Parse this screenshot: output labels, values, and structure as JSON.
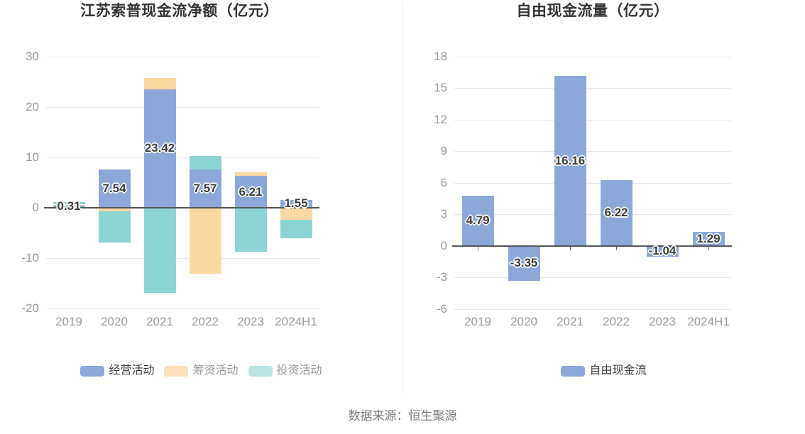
{
  "footer": {
    "text": "数据来源：恒生聚源"
  },
  "style": {
    "background": "#ffffff",
    "grid_color": "#e3e8f4",
    "zero_line_color": "#565656",
    "tick_color": "#666666",
    "axis_label_color": "#999999",
    "title_color": "#333333",
    "bar_label_color": "#3d3d3d",
    "footer_color": "#7a7a7a",
    "divider_color": "#ececec"
  },
  "chart_data": [
    {
      "type": "bar",
      "stacked": true,
      "title": "江苏索普现金流净额（亿元）",
      "categories": [
        "2019",
        "2020",
        "2021",
        "2022",
        "2023",
        "2024H1"
      ],
      "series": [
        {
          "name": "经营活动",
          "color": "#8ca8d8",
          "show_labels": true,
          "values": [
            0.31,
            7.54,
            23.42,
            7.57,
            6.21,
            1.55
          ]
        },
        {
          "name": "筹资活动",
          "color": "#fad8a2",
          "show_labels": false,
          "values": [
            0.25,
            -0.7,
            2.3,
            -13.2,
            0.7,
            -2.5
          ]
        },
        {
          "name": "投资活动",
          "color": "#8bd4d4",
          "show_labels": false,
          "values": [
            0.55,
            -6.3,
            -17.0,
            2.6,
            -8.8,
            -3.6
          ]
        }
      ],
      "labeled_values": [
        "0.31",
        "7.54",
        "23.42",
        "7.57",
        "6.21",
        "1.55"
      ],
      "y_ticks": [
        30,
        20,
        10,
        0,
        -10,
        -20
      ],
      "ylim": [
        -20,
        30
      ],
      "xlabel": "",
      "ylabel": "",
      "grid": true,
      "legend_position": "bottom",
      "legend": [
        {
          "label": "经营活动",
          "swatch_color": "#8ca8d8",
          "label_color": "#3c3c3c"
        },
        {
          "label": "筹资活动",
          "swatch_color": "#fbe2ba",
          "label_color": "#999999"
        },
        {
          "label": "投资活动",
          "swatch_color": "#b9e4e4",
          "label_color": "#999999"
        }
      ]
    },
    {
      "type": "bar",
      "stacked": false,
      "title": "自由现金流量（亿元）",
      "categories": [
        "2019",
        "2020",
        "2021",
        "2022",
        "2023",
        "2024H1"
      ],
      "series": [
        {
          "name": "自由现金流",
          "color": "#8ca8d8",
          "show_labels": true,
          "values": [
            4.79,
            -3.35,
            16.16,
            6.22,
            -1.04,
            1.29
          ]
        }
      ],
      "labeled_values": [
        "4.79",
        "-3.35",
        "16.16",
        "6.22",
        "-1.04",
        "1.29"
      ],
      "y_ticks": [
        18,
        15,
        12,
        9,
        6,
        3,
        0,
        -3,
        -6
      ],
      "ylim": [
        -6,
        18
      ],
      "xlabel": "",
      "ylabel": "",
      "grid": true,
      "legend_position": "bottom",
      "legend": [
        {
          "label": "自由现金流",
          "swatch_color": "#8ca8d8",
          "label_color": "#3c3c3c"
        }
      ]
    }
  ]
}
